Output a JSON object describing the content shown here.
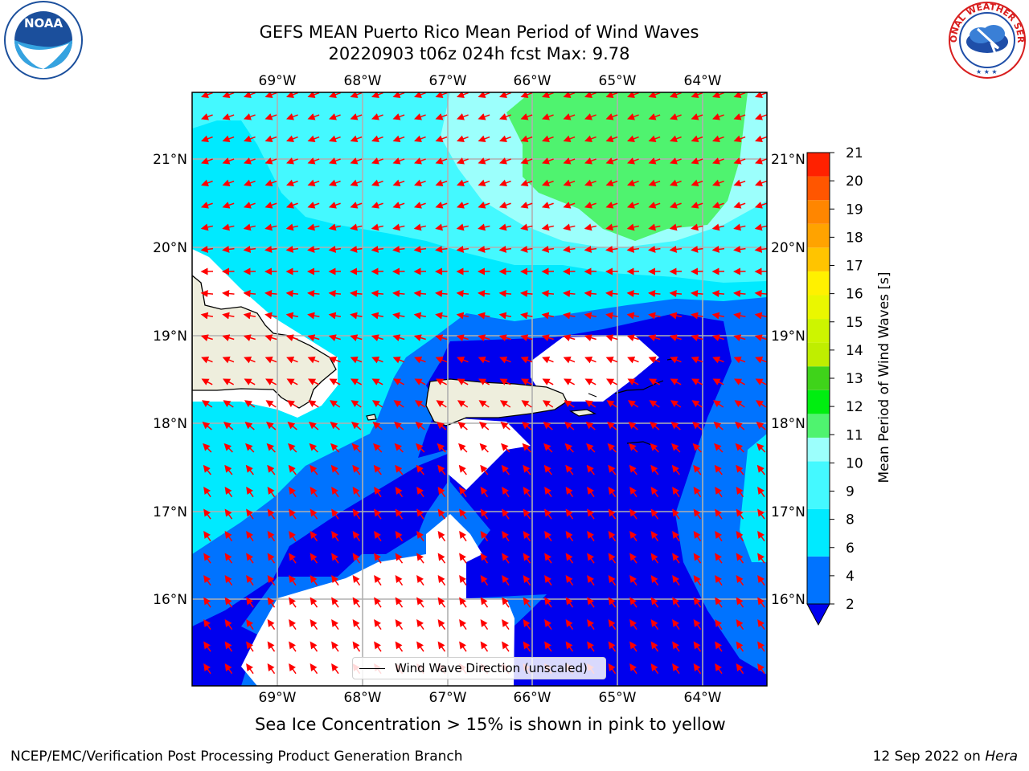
{
  "title": {
    "line1": "GEFS MEAN Puerto Rico Mean Period of Wind Waves",
    "line2": "20220903 t06z 024h fcst   Max: 9.78"
  },
  "logos": {
    "left": {
      "text": "NOAA",
      "ring_text": "NATIONAL OCEANIC AND ATMOSPHERIC ADMINISTRATION · U.S. DEPARTMENT OF COMMERCE"
    },
    "right": {
      "ring_text": "NATIONAL WEATHER SERVICE"
    }
  },
  "map": {
    "lon_labels": [
      "69°W",
      "68°W",
      "67°W",
      "66°W",
      "65°W",
      "64°W"
    ],
    "lat_labels": [
      "21°N",
      "20°N",
      "19°N",
      "18°N",
      "17°N",
      "16°N"
    ],
    "lon_range": [
      -70.0,
      -63.25
    ],
    "lat_range": [
      15.0,
      21.75
    ],
    "legend_label": "Wind Wave Direction (unscaled)",
    "arrow_color": "#ff0000",
    "land_color": "#eeeedd"
  },
  "colorbar": {
    "label": "Mean Period of Wind Waves [s]",
    "tick_labels": [
      "2",
      "4",
      "6",
      "8",
      "9",
      "10",
      "11",
      "12",
      "13",
      "14",
      "15",
      "16",
      "17",
      "18",
      "19",
      "20",
      "21"
    ],
    "levels": [
      {
        "lo": 2,
        "hi": 4,
        "color": "#0073ff"
      },
      {
        "lo": 4,
        "hi": 6,
        "color": "#00eaff"
      },
      {
        "lo": 6,
        "hi": 8,
        "color": "#44f9ff"
      },
      {
        "lo": 8,
        "hi": 9,
        "color": "#9cfffc"
      },
      {
        "lo": 9,
        "hi": 10,
        "color": "#4ff36f"
      },
      {
        "lo": 10,
        "hi": 11,
        "color": "#00ee10"
      },
      {
        "lo": 11,
        "hi": 12,
        "color": "#3fd31a"
      },
      {
        "lo": 12,
        "hi": 13,
        "color": "#bfee00"
      },
      {
        "lo": 13,
        "hi": 14,
        "color": "#cdf500"
      },
      {
        "lo": 14,
        "hi": 15,
        "color": "#eaf700"
      },
      {
        "lo": 15,
        "hi": 16,
        "color": "#fff100"
      },
      {
        "lo": 16,
        "hi": 17,
        "color": "#ffc400"
      },
      {
        "lo": 17,
        "hi": 18,
        "color": "#ffa300"
      },
      {
        "lo": 18,
        "hi": 19,
        "color": "#ff8600"
      },
      {
        "lo": 19,
        "hi": 20,
        "color": "#ff5600"
      },
      {
        "lo": 20,
        "hi": 21,
        "color": "#ff2100"
      },
      {
        "lo": 21,
        "hi": 22,
        "color": "#ff0000"
      }
    ],
    "under_color": "#0000ee"
  },
  "note": "Sea Ice Concentration > 15% is shown in pink to yellow",
  "footer": {
    "left": "NCEP/EMC/Verification Post Processing Product Generation Branch",
    "right_date": "12 Sep 2022 on ",
    "right_machine": "Hera"
  }
}
